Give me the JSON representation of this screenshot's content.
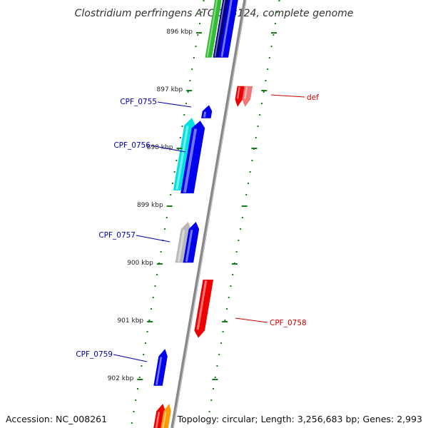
{
  "title": "Clostridium perfringens ATCC 13124, complete genome",
  "ticks": [
    {
      "label": "896 kbp",
      "kbp": 896
    },
    {
      "label": "897 kbp",
      "kbp": 897
    },
    {
      "label": "898 kbp",
      "kbp": 898
    },
    {
      "label": "899 kbp",
      "kbp": 899
    },
    {
      "label": "900 kbp",
      "kbp": 900
    },
    {
      "label": "901 kbp",
      "kbp": 901
    },
    {
      "label": "902 kbp",
      "kbp": 902
    }
  ],
  "genes": [
    {
      "label": "",
      "strand": "forward",
      "start_kbp": 895.3,
      "end_kbp": 896.45,
      "color": "#33bb33"
    },
    {
      "label": "",
      "strand": "forward",
      "start_kbp": 895.3,
      "end_kbp": 896.45,
      "color": "#000080"
    },
    {
      "label": "",
      "strand": "forward",
      "start_kbp": 895.3,
      "end_kbp": 896.45,
      "color": "#0000ee"
    },
    {
      "label": "CPF_0755",
      "strand": "forward",
      "start_kbp": 897.28,
      "end_kbp": 897.5,
      "color": "#0000ee"
    },
    {
      "label": "CPF_0756",
      "strand": "forward",
      "start_kbp": 897.5,
      "end_kbp": 898.75,
      "color": "#00e0e0"
    },
    {
      "label": "",
      "strand": "forward",
      "start_kbp": 897.55,
      "end_kbp": 898.8,
      "color": "#0000ee"
    },
    {
      "label": "CPF_0757",
      "strand": "forward",
      "start_kbp": 899.3,
      "end_kbp": 900.0,
      "color": "#b8b8b8"
    },
    {
      "label": "",
      "strand": "forward",
      "start_kbp": 899.3,
      "end_kbp": 900.0,
      "color": "#0000ee"
    },
    {
      "label": "CPF_0759",
      "strand": "forward",
      "start_kbp": 901.5,
      "end_kbp": 902.13,
      "color": "#0000ee"
    },
    {
      "label": "",
      "strand": "forward",
      "start_kbp": 902.45,
      "end_kbp": 903.0,
      "color": "#ee0000"
    },
    {
      "label": "",
      "strand": "forward",
      "start_kbp": 902.45,
      "end_kbp": 903.0,
      "color": "#ff9900"
    },
    {
      "label": "def",
      "strand": "reverse",
      "start_kbp": 896.95,
      "end_kbp": 897.3,
      "color": "#ee0000"
    },
    {
      "label": "",
      "strand": "reverse",
      "start_kbp": 896.95,
      "end_kbp": 897.3,
      "color": "#ee7777"
    },
    {
      "label": "CPF_0758",
      "strand": "reverse",
      "start_kbp": 900.3,
      "end_kbp": 901.3,
      "color": "#ee0000"
    }
  ],
  "colors": {
    "backbone": "#888888",
    "tick": "#1a7a1a",
    "forward_label": "#0000aa",
    "reverse_label": "#cc0000"
  },
  "footer": {
    "accession": "Accession: NC_008261",
    "summary": "Topology: circular; Length: 3,256,683 bp; Genes: 2,993"
  }
}
